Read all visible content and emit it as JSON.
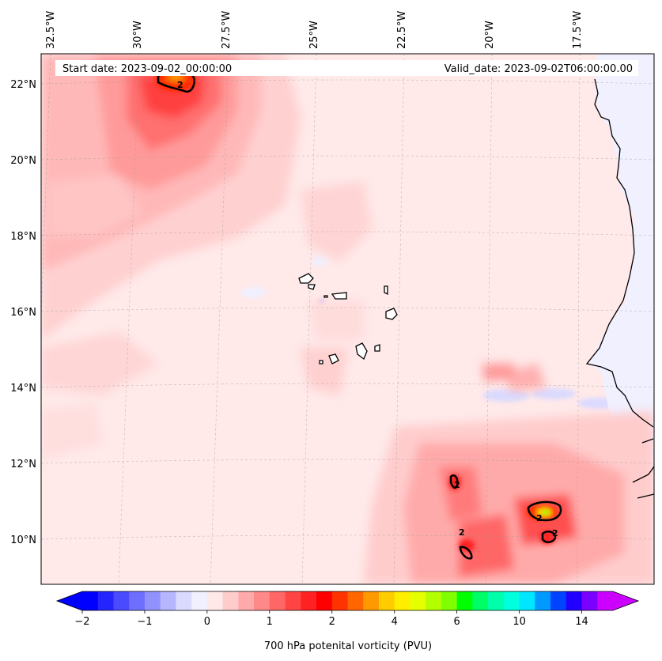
{
  "header": {
    "start_date": "Start date: 2023-09-02_00:00:00",
    "valid_date": "Valid_date: 2023-09-02T06:00:00.00"
  },
  "map": {
    "longitude_labels": [
      "32.5°W",
      "30°W",
      "27.5°W",
      "25°W",
      "22.5°W",
      "20°W",
      "17.5°W"
    ],
    "latitude_labels": [
      "22°N",
      "20°N",
      "18°N",
      "16°N",
      "14°N",
      "12°N",
      "10°N"
    ],
    "contour_labels": [
      "2",
      "2",
      "2",
      "2",
      "2"
    ]
  },
  "colorbar": {
    "title": "700 hPa potenital vorticity (PVU)",
    "tick_labels": [
      "−2",
      "−1",
      "0",
      "1",
      "2",
      "4",
      "6",
      "10",
      "14"
    ],
    "colors": [
      "#0000ff",
      "#2424ff",
      "#4a4aff",
      "#6e6eff",
      "#9292ff",
      "#b6b6ff",
      "#dadaff",
      "#f0f0ff",
      "#ffe8e8",
      "#ffcccc",
      "#ffaaaa",
      "#ff8888",
      "#ff6666",
      "#ff4444",
      "#ff2222",
      "#ff0000",
      "#ff3300",
      "#ff6600",
      "#ff9900",
      "#ffcc00",
      "#ffee00",
      "#e6ff00",
      "#b3ff00",
      "#80ff00",
      "#00ff00",
      "#00ff66",
      "#00ffaa",
      "#00ffdd",
      "#00e6ff",
      "#0099ff",
      "#0044ff",
      "#2200ff",
      "#7a00ff",
      "#cc00ff"
    ],
    "extend_min_color": "#0000ff",
    "extend_max_color": "#cc00ff"
  }
}
